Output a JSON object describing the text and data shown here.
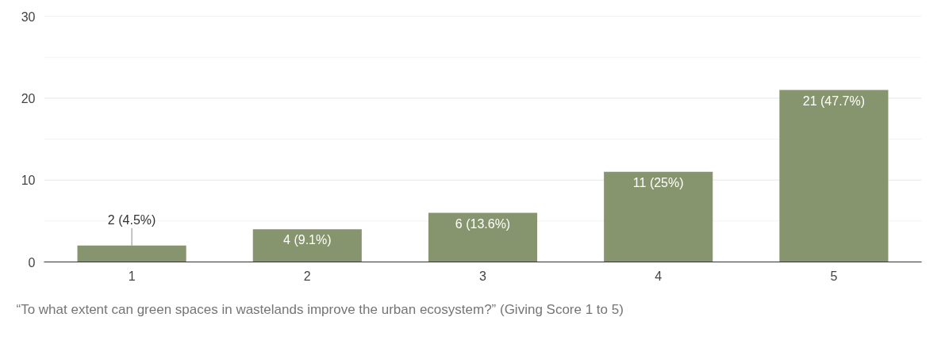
{
  "chart_data": {
    "type": "bar",
    "categories": [
      "1",
      "2",
      "3",
      "4",
      "5"
    ],
    "values": [
      2,
      4,
      6,
      11,
      21
    ],
    "value_labels": [
      "2 (4.5%)",
      "4 (9.1%)",
      "6 (13.6%)",
      "11 (25%)",
      "21 (47.7%)"
    ],
    "color": "#86956d",
    "ylim": [
      0,
      30
    ],
    "yticks": [
      0,
      {
        "value": 5,
        "label": null
      },
      10,
      {
        "value": 15,
        "label": null
      },
      20,
      {
        "value": 25,
        "label": null
      },
      30
    ],
    "grid": "y",
    "annotations": [
      "“To what extent can green spaces in wastelands improve the urban ecosystem?” (Giving Score 1 to 5)"
    ]
  }
}
